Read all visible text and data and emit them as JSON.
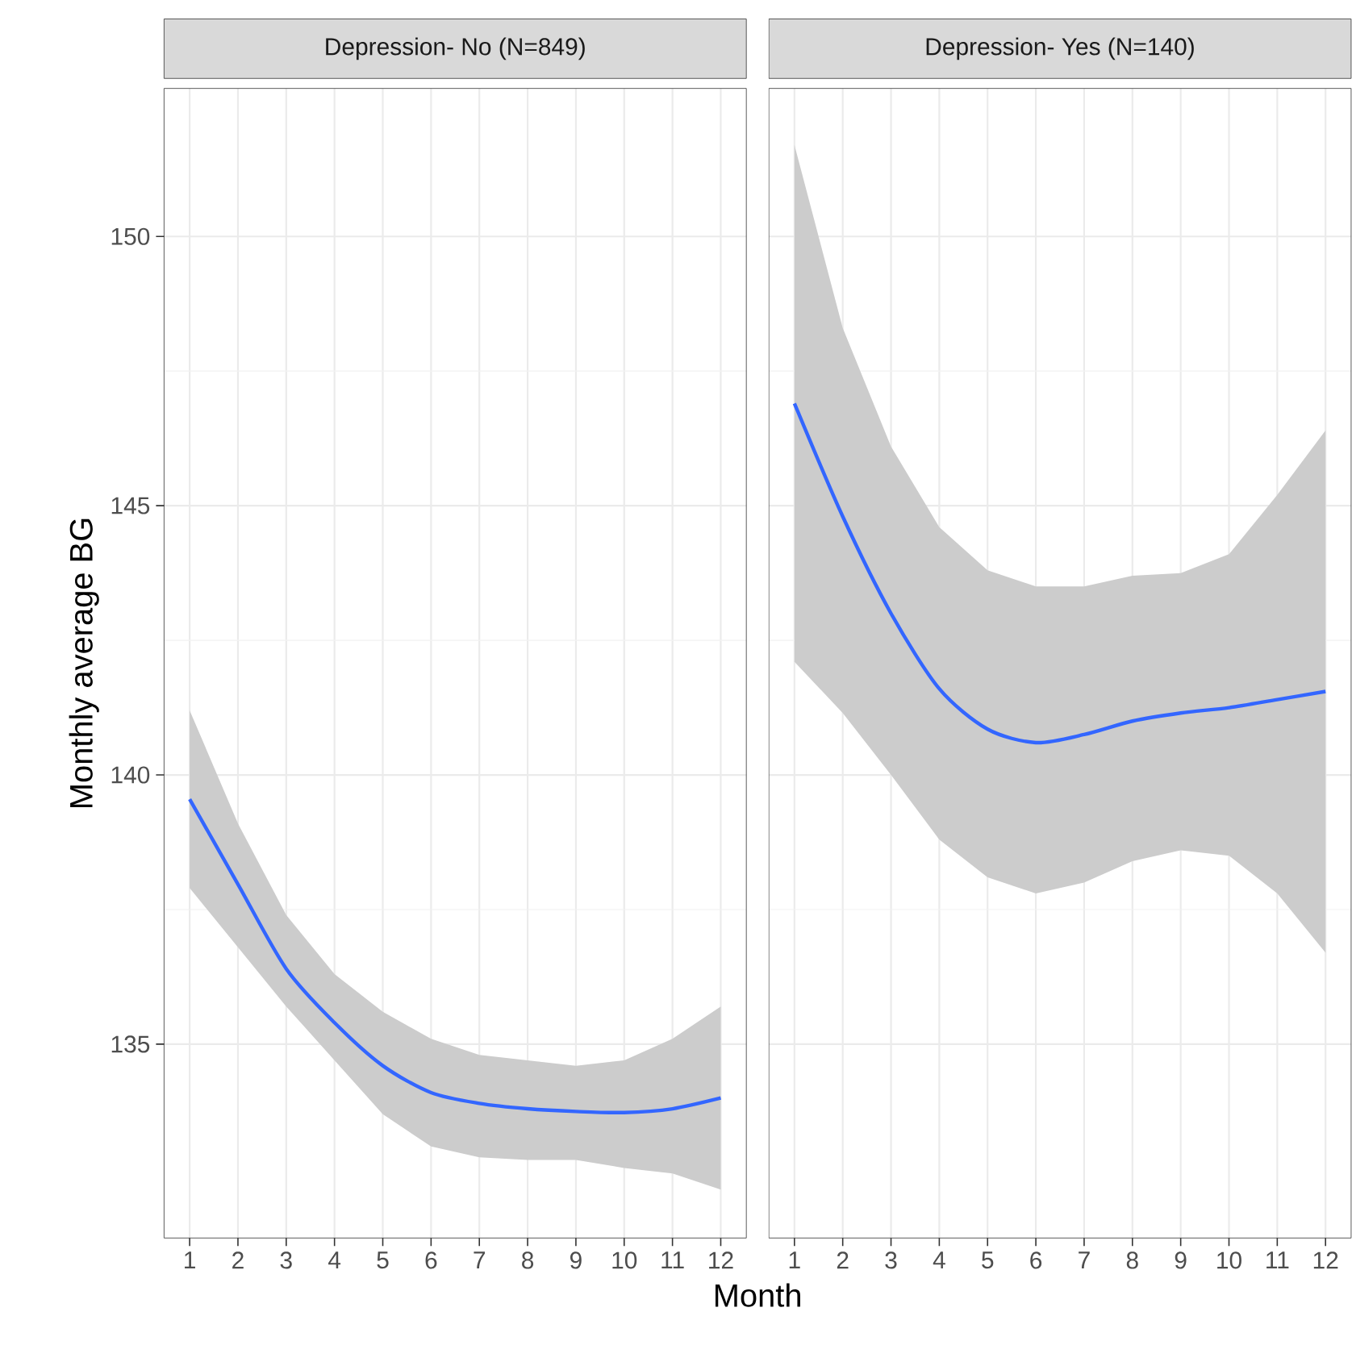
{
  "chart_data": [
    {
      "type": "line",
      "title": "Depression- No (N=849)",
      "xlabel": "Month",
      "ylabel": "Monthly average BG",
      "x": [
        1,
        2,
        3,
        4,
        5,
        6,
        7,
        8,
        9,
        10,
        11,
        12
      ],
      "series": [
        {
          "color": "#3366ff",
          "values": [
            139.55,
            137.97,
            136.4,
            135.4,
            134.6,
            134.1,
            133.9,
            133.8,
            133.75,
            133.73,
            133.8,
            134.0
          ],
          "lower": [
            137.9,
            136.8,
            135.7,
            134.7,
            133.7,
            133.1,
            132.9,
            132.85,
            132.85,
            132.7,
            132.6,
            132.3
          ],
          "upper": [
            141.2,
            139.1,
            137.4,
            136.3,
            135.6,
            135.1,
            134.8,
            134.7,
            134.6,
            134.7,
            135.1,
            135.7
          ]
        }
      ],
      "xlim": [
        0.47,
        12.53
      ],
      "ylim": [
        131.4,
        152.75
      ],
      "xticks": [
        1,
        2,
        3,
        4,
        5,
        6,
        7,
        8,
        9,
        10,
        11,
        12
      ],
      "yticks": [
        135,
        140,
        145,
        150
      ],
      "grid": true
    },
    {
      "type": "line",
      "title": "Depression- Yes (N=140)",
      "x": [
        1,
        2,
        3,
        4,
        5,
        6,
        7,
        8,
        9,
        10,
        11,
        12
      ],
      "series": [
        {
          "color": "#3366ff",
          "values": [
            146.9,
            144.8,
            143.0,
            141.6,
            140.85,
            140.6,
            140.75,
            141.0,
            141.15,
            141.25,
            141.4,
            141.55
          ],
          "lower": [
            142.1,
            141.15,
            140.0,
            138.8,
            138.1,
            137.8,
            138.0,
            138.4,
            138.6,
            138.5,
            137.8,
            136.7
          ],
          "upper": [
            151.7,
            148.3,
            146.1,
            144.6,
            143.8,
            143.5,
            143.5,
            143.7,
            143.75,
            144.1,
            145.2,
            146.4
          ]
        }
      ],
      "xlim": [
        0.47,
        12.53
      ],
      "ylim": [
        131.4,
        152.75
      ],
      "xticks": [
        1,
        2,
        3,
        4,
        5,
        6,
        7,
        8,
        9,
        10,
        11,
        12
      ],
      "yticks": [
        135,
        140,
        145,
        150
      ],
      "grid": true,
      "tick_labels": "x"
    }
  ]
}
